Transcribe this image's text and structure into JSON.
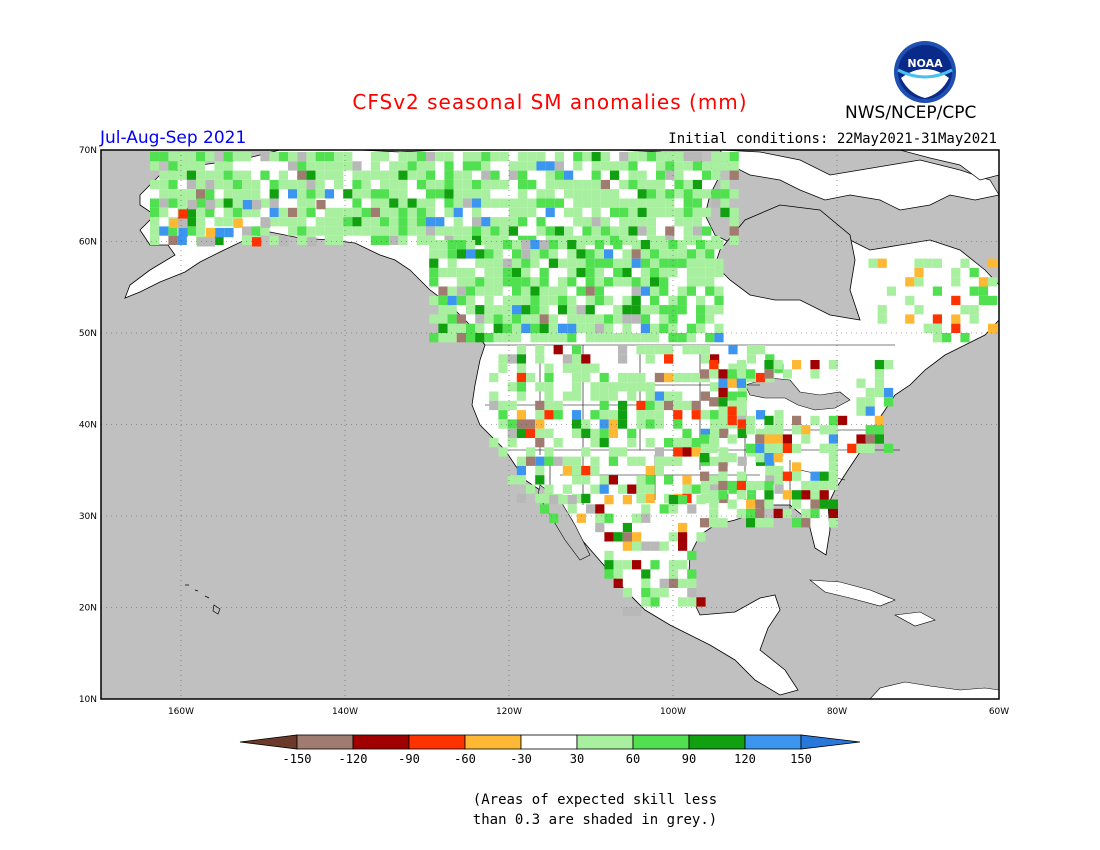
{
  "title": "CFSv2 seasonal SM anomalies (mm)",
  "season": "Jul-Aug-Sep 2021",
  "initial_conditions": "Initial conditions: 22May2021-31May2021",
  "agency": "NWS/NCEP/CPC",
  "logo_text": "NOAA",
  "lat_labels": [
    "70N",
    "60N",
    "50N",
    "40N",
    "30N",
    "20N",
    "10N"
  ],
  "lon_labels": [
    "160W",
    "140W",
    "120W",
    "100W",
    "80W",
    "60W"
  ],
  "legend": {
    "ticks": [
      "-150",
      "-120",
      "-90",
      "-60",
      "-30",
      "30",
      "60",
      "90",
      "120",
      "150"
    ],
    "colors": [
      "#6b3a2a",
      "#a07b70",
      "#a00000",
      "#ff3300",
      "#ffb833",
      "#ffffff",
      "#a8f0a0",
      "#50e050",
      "#10a010",
      "#3c96f0",
      "#2878dc"
    ]
  },
  "note_line1": "(Areas of expected skill less",
  "note_line2": "than 0.3 are shaded in grey.)",
  "colors": {
    "ocean": "#c0c0c0",
    "land": "#ffffff",
    "title": "#ff0000",
    "season": "#0000ff"
  }
}
